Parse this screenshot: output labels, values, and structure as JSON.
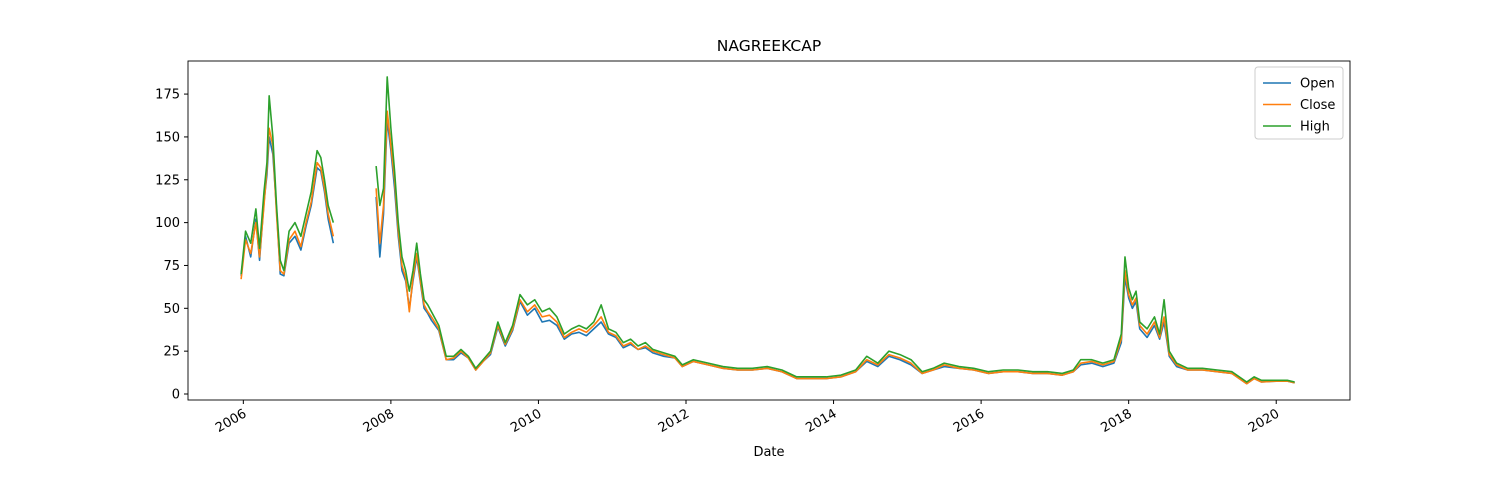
{
  "chart_data": {
    "type": "line",
    "title": "NAGREEKCAP",
    "xlabel": "Date",
    "x": [
      2005.97,
      2006.03,
      2006.1,
      2006.17,
      2006.22,
      2006.28,
      2006.32,
      2006.35,
      2006.4,
      2006.45,
      2006.5,
      2006.55,
      2006.62,
      2006.7,
      2006.78,
      2006.85,
      2006.92,
      2007.0,
      2007.05,
      2007.1,
      2007.15,
      2007.22,
      2007.3,
      2007.8,
      2007.85,
      2007.9,
      2007.95,
      2008.0,
      2008.05,
      2008.1,
      2008.15,
      2008.2,
      2008.25,
      2008.3,
      2008.35,
      2008.4,
      2008.45,
      2008.5,
      2008.55,
      2008.65,
      2008.75,
      2008.85,
      2008.95,
      2009.05,
      2009.15,
      2009.25,
      2009.35,
      2009.45,
      2009.55,
      2009.65,
      2009.75,
      2009.85,
      2009.95,
      2010.05,
      2010.15,
      2010.25,
      2010.35,
      2010.45,
      2010.55,
      2010.65,
      2010.75,
      2010.85,
      2010.95,
      2011.05,
      2011.15,
      2011.25,
      2011.35,
      2011.45,
      2011.55,
      2011.7,
      2011.85,
      2011.95,
      2012.1,
      2012.3,
      2012.5,
      2012.7,
      2012.9,
      2013.1,
      2013.3,
      2013.5,
      2013.7,
      2013.9,
      2014.1,
      2014.3,
      2014.45,
      2014.6,
      2014.75,
      2014.9,
      2015.05,
      2015.2,
      2015.35,
      2015.5,
      2015.7,
      2015.9,
      2016.1,
      2016.3,
      2016.5,
      2016.7,
      2016.9,
      2017.1,
      2017.25,
      2017.35,
      2017.5,
      2017.65,
      2017.8,
      2017.9,
      2017.95,
      2018.0,
      2018.05,
      2018.1,
      2018.15,
      2018.25,
      2018.35,
      2018.42,
      2018.48,
      2018.55,
      2018.65,
      2018.8,
      2019.0,
      2019.2,
      2019.4,
      2019.5,
      2019.6,
      2019.7,
      2019.8,
      2020.0,
      2020.15,
      2020.25
    ],
    "series": [
      {
        "name": "Open",
        "color": "#1f77b4",
        "values": [
          69,
          92,
          80,
          102,
          78,
          112,
          128,
          150,
          140,
          108,
          70,
          69,
          88,
          92,
          84,
          98,
          110,
          132,
          130,
          118,
          102,
          88,
          null,
          115,
          80,
          105,
          160,
          142,
          120,
          92,
          72,
          66,
          50,
          66,
          80,
          65,
          50,
          47,
          43,
          37,
          20,
          20,
          24,
          21,
          14,
          19,
          23,
          39,
          28,
          37,
          54,
          46,
          50,
          42,
          43,
          40,
          32,
          35,
          36,
          34,
          38,
          42,
          35,
          33,
          27,
          29,
          26,
          27,
          24,
          22,
          21,
          16,
          19,
          17,
          15,
          14,
          14,
          15,
          13,
          9,
          9,
          9,
          10,
          13,
          19,
          16,
          22,
          20,
          17,
          12,
          14,
          16,
          15,
          14,
          12,
          13,
          13,
          12,
          12,
          11,
          13,
          17,
          18,
          16,
          18,
          30,
          68,
          56,
          50,
          54,
          38,
          33,
          40,
          32,
          42,
          22,
          16,
          14,
          14,
          13,
          12,
          9,
          6,
          9,
          7,
          7.5,
          7.5,
          6.5
        ]
      },
      {
        "name": "Close",
        "color": "#ff7f0e",
        "values": [
          67,
          90,
          82,
          100,
          80,
          110,
          132,
          155,
          145,
          105,
          72,
          70,
          90,
          95,
          86,
          100,
          112,
          135,
          132,
          120,
          105,
          92,
          null,
          120,
          88,
          110,
          165,
          145,
          125,
          95,
          75,
          68,
          48,
          68,
          82,
          66,
          52,
          48,
          45,
          38,
          20,
          21,
          25,
          21,
          14,
          19,
          24,
          40,
          29,
          38,
          55,
          48,
          52,
          45,
          46,
          42,
          33,
          36,
          38,
          36,
          40,
          45,
          36,
          34,
          28,
          30,
          26,
          28,
          25,
          23,
          21,
          16,
          19,
          17,
          15,
          14,
          14,
          15,
          13,
          9,
          9,
          9,
          10,
          13,
          20,
          17,
          23,
          21,
          18,
          12,
          14,
          17,
          15,
          14,
          12,
          13,
          13,
          12,
          12,
          11,
          13,
          18,
          19,
          17,
          19,
          32,
          72,
          58,
          52,
          56,
          40,
          35,
          42,
          33,
          45,
          23,
          17,
          14,
          14,
          13,
          12,
          9,
          6,
          9,
          7,
          7.5,
          7.5,
          6.5
        ]
      },
      {
        "name": "High",
        "color": "#2ca02c",
        "values": [
          70,
          95,
          88,
          108,
          85,
          118,
          135,
          174,
          150,
          110,
          78,
          72,
          95,
          100,
          92,
          105,
          118,
          142,
          138,
          125,
          110,
          100,
          null,
          133,
          110,
          120,
          185,
          155,
          130,
          100,
          80,
          72,
          60,
          72,
          88,
          70,
          55,
          52,
          48,
          40,
          22,
          22,
          26,
          22,
          15,
          20,
          25,
          42,
          30,
          40,
          58,
          52,
          55,
          48,
          50,
          45,
          35,
          38,
          40,
          38,
          42,
          52,
          38,
          36,
          30,
          32,
          28,
          30,
          26,
          24,
          22,
          17,
          20,
          18,
          16,
          15,
          15,
          16,
          14,
          10,
          10,
          10,
          11,
          14,
          22,
          18,
          25,
          23,
          20,
          13,
          15,
          18,
          16,
          15,
          13,
          14,
          14,
          13,
          13,
          12,
          14,
          20,
          20,
          18,
          20,
          35,
          80,
          62,
          55,
          60,
          42,
          38,
          45,
          35,
          55,
          25,
          18,
          15,
          15,
          14,
          13,
          10,
          7,
          10,
          8,
          8,
          8,
          7
        ]
      }
    ],
    "xlim": [
      2005.25,
      2021.0
    ],
    "xticks": [
      2006,
      2008,
      2010,
      2012,
      2014,
      2016,
      2018,
      2020
    ],
    "ylim": [
      -3.5,
      194.3
    ],
    "yticks": [
      0,
      25,
      50,
      75,
      100,
      125,
      150,
      175
    ],
    "legend": "upper right"
  }
}
